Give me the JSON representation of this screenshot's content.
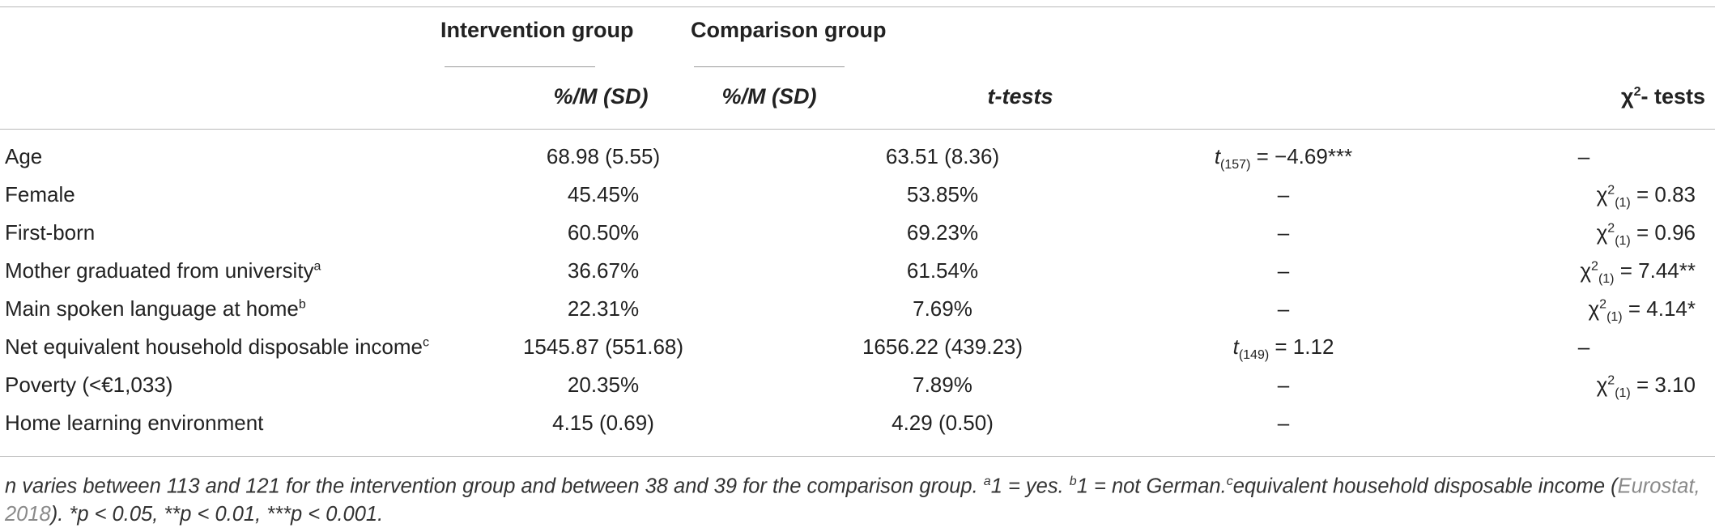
{
  "table": {
    "group_headers": [
      "Intervention group",
      "Comparison group"
    ],
    "sub_headers": {
      "intervention": "%/M (SD)",
      "comparison": "%/M (SD)",
      "ttests": "t-tests",
      "chi": "χ2- tests"
    },
    "rows": [
      {
        "label": "Age",
        "label_sup": "",
        "intervention": "68.98 (5.55)",
        "comparison": "63.51 (8.36)",
        "t_stat": "t",
        "t_df": "(157)",
        "t_val": " = −4.69***",
        "t_plain": "",
        "chi_df": "",
        "chi_val": "",
        "chi_plain": "–"
      },
      {
        "label": "Female",
        "label_sup": "",
        "intervention": "45.45%",
        "comparison": "53.85%",
        "t_stat": "",
        "t_df": "",
        "t_val": "",
        "t_plain": "–",
        "chi_df": "(1)",
        "chi_val": " = 0.83",
        "chi_plain": ""
      },
      {
        "label": "First-born",
        "label_sup": "",
        "intervention": "60.50%",
        "comparison": "69.23%",
        "t_stat": "",
        "t_df": "",
        "t_val": "",
        "t_plain": "–",
        "chi_df": "(1)",
        "chi_val": " = 0.96",
        "chi_plain": ""
      },
      {
        "label": "Mother graduated from university",
        "label_sup": "a",
        "intervention": "36.67%",
        "comparison": "61.54%",
        "t_stat": "",
        "t_df": "",
        "t_val": "",
        "t_plain": "–",
        "chi_df": "(1)",
        "chi_val": " = 7.44**",
        "chi_plain": ""
      },
      {
        "label": "Main spoken language at home",
        "label_sup": "b",
        "intervention": "22.31%",
        "comparison": "7.69%",
        "t_stat": "",
        "t_df": "",
        "t_val": "",
        "t_plain": "–",
        "chi_df": "(1)",
        "chi_val": " = 4.14*",
        "chi_plain": ""
      },
      {
        "label": "Net equivalent household disposable income",
        "label_sup": "c",
        "intervention": "1545.87 (551.68)",
        "comparison": "1656.22 (439.23)",
        "t_stat": "t",
        "t_df": "(149)",
        "t_val": " = 1.12",
        "t_plain": "",
        "chi_df": "",
        "chi_val": "",
        "chi_plain": "–"
      },
      {
        "label": "Poverty (<€1,033)",
        "label_sup": "",
        "intervention": "20.35%",
        "comparison": "7.89%",
        "t_stat": "",
        "t_df": "",
        "t_val": "",
        "t_plain": "–",
        "chi_df": "(1)",
        "chi_val": " = 3.10",
        "chi_plain": ""
      },
      {
        "label": "Home learning environment",
        "label_sup": "",
        "intervention": "4.15 (0.69)",
        "comparison": "4.29 (0.50)",
        "t_stat": "",
        "t_df": "",
        "t_val": "",
        "t_plain": "–",
        "chi_df": "",
        "chi_val": "",
        "chi_plain": ""
      }
    ]
  },
  "note": {
    "part1": "n varies between 113 and 121 for the intervention group and between 38 and 39 for the comparison group. ",
    "sup_a": "a",
    "part2": "1 = yes. ",
    "sup_b": "b",
    "part3": "1 = not German.",
    "sup_c": "c",
    "part4": "equivalent household disposable income (",
    "link": "Eurostat, 2018",
    "part5": "). *p < 0.05, **p < 0.01, ***p < 0.001."
  }
}
